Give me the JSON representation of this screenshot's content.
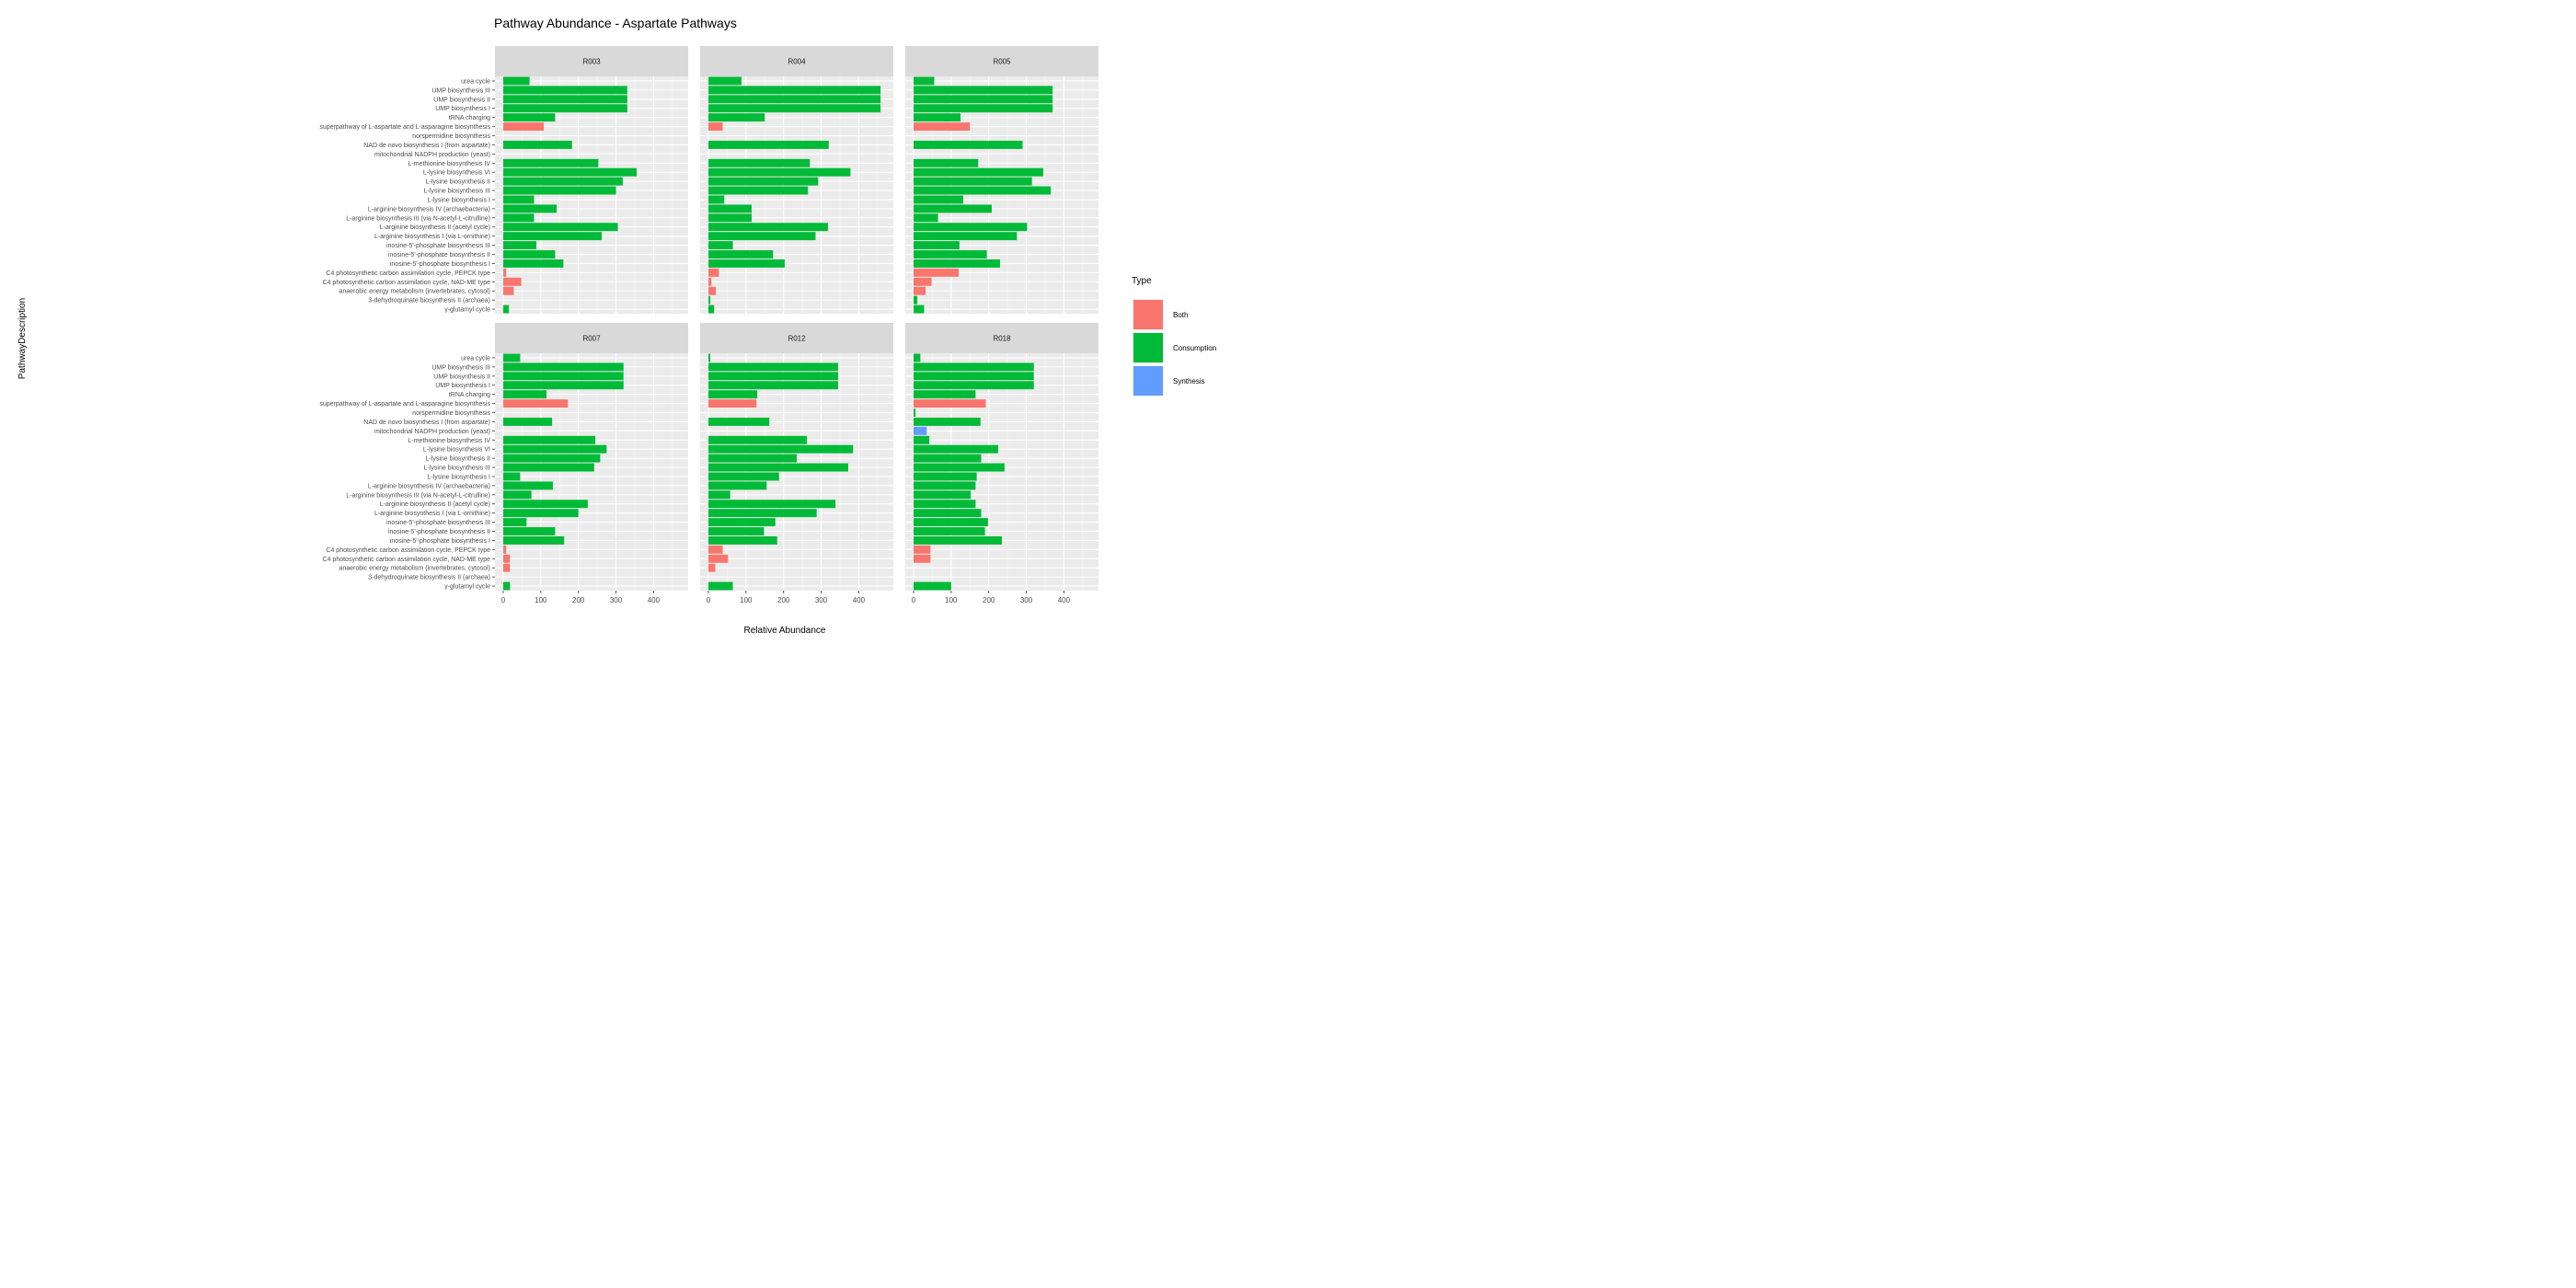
{
  "chart_data": {
    "type": "bar",
    "orientation": "horizontal",
    "title": "Pathway Abundance - Aspartate Pathways",
    "xlabel": "Relative Abundance",
    "ylabel": "PathwayDescription",
    "xlim": [
      0,
      470
    ],
    "xticks": [
      0,
      100,
      200,
      300,
      400
    ],
    "grid": true,
    "legend": {
      "title": "Type",
      "position": "right",
      "entries": [
        {
          "name": "Both",
          "color": "#F8766D"
        },
        {
          "name": "Consumption",
          "color": "#00BA38"
        },
        {
          "name": "Synthesis",
          "color": "#619CFF"
        }
      ]
    },
    "categories": [
      "urea cycle",
      "UMP biosynthesis III",
      "UMP biosynthesis II",
      "UMP biosynthesis I",
      "tRNA charging",
      "superpathway of L-aspartate and L-asparagine biosynthesis",
      "norspermidine biosynthesis",
      "NAD de novo biosynthesis I (from aspartate)",
      "mitochondrial NADPH production (yeast)",
      "L-methionine biosynthesis IV",
      "L-lysine biosynthesis VI",
      "L-lysine biosynthesis II",
      "L-lysine biosynthesis III",
      "L-lysine biosynthesis I",
      "L-arginine biosynthesis IV (archaebacteria)",
      "L-arginine biosynthesis III (via N-acetyl-L-citrulline)",
      "L-arginine biosynthesis II (acetyl cycle)",
      "L-arginine biosynthesis I (via L-ornithine)",
      "inosine-5'-phosphate biosynthesis III",
      "inosine-5'-phosphate biosynthesis II",
      "inosine-5'-phosphate biosynthesis I",
      "C4 photosynthetic carbon assimilation cycle, PEPCK type",
      "C4 photosynthetic carbon assimilation cycle, NAD-ME type",
      "anaerobic energy metabolism (invertebrates, cytosol)",
      "3-dehydroquinate biosynthesis II (archaea)",
      "&gamma;-glutamyl cycle"
    ],
    "category_types": [
      "Consumption",
      "Consumption",
      "Consumption",
      "Consumption",
      "Consumption",
      "Both",
      "Consumption",
      "Consumption",
      "Synthesis",
      "Consumption",
      "Consumption",
      "Consumption",
      "Consumption",
      "Consumption",
      "Consumption",
      "Consumption",
      "Consumption",
      "Consumption",
      "Consumption",
      "Consumption",
      "Consumption",
      "Both",
      "Both",
      "Both",
      "Consumption",
      "Consumption"
    ],
    "panels": [
      {
        "name": "R003",
        "values": [
          70,
          330,
          330,
          330,
          138,
          108,
          0,
          183,
          0,
          253,
          355,
          318,
          300,
          82,
          142,
          82,
          305,
          262,
          88,
          138,
          160,
          8,
          48,
          28,
          0,
          15
        ]
      },
      {
        "name": "R004",
        "values": [
          88,
          458,
          458,
          458,
          150,
          38,
          0,
          320,
          0,
          270,
          378,
          292,
          265,
          42,
          115,
          115,
          318,
          285,
          65,
          172,
          203,
          28,
          8,
          20,
          5,
          15
        ]
      },
      {
        "name": "R005",
        "values": [
          55,
          370,
          370,
          370,
          125,
          150,
          0,
          290,
          0,
          172,
          345,
          315,
          365,
          132,
          208,
          65,
          302,
          275,
          122,
          195,
          230,
          120,
          48,
          32,
          10,
          28
        ]
      },
      {
        "name": "R007",
        "values": [
          45,
          320,
          320,
          320,
          115,
          172,
          0,
          130,
          0,
          245,
          275,
          258,
          242,
          45,
          132,
          75,
          225,
          200,
          62,
          138,
          162,
          8,
          18,
          18,
          0,
          18
        ]
      },
      {
        "name": "R012",
        "values": [
          5,
          345,
          345,
          345,
          130,
          128,
          0,
          162,
          0,
          262,
          385,
          235,
          372,
          188,
          155,
          58,
          338,
          288,
          178,
          148,
          183,
          38,
          52,
          18,
          0,
          65
        ]
      },
      {
        "name": "R018",
        "values": [
          18,
          320,
          320,
          320,
          165,
          192,
          5,
          178,
          35,
          42,
          225,
          180,
          242,
          168,
          165,
          152,
          165,
          180,
          198,
          190,
          235,
          45,
          45,
          0,
          0,
          100
        ]
      }
    ]
  }
}
